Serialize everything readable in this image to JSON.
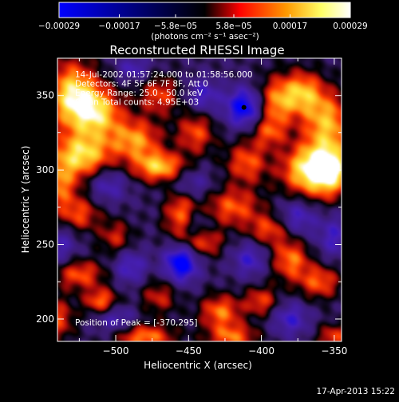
{
  "chart_data": {
    "type": "heatmap",
    "title": "Reconstructed RHESSI Image",
    "xlabel": "Heliocentric X (arcsec)",
    "ylabel": "Heliocentric Y (arcsec)",
    "xlim": [
      -540,
      -345
    ],
    "ylim": [
      185,
      375
    ],
    "xticks": [
      -500,
      -450,
      -400,
      -350
    ],
    "yticks": [
      200,
      250,
      300,
      350
    ],
    "xtick_labels": [
      "−500",
      "−450",
      "−400",
      "−350"
    ],
    "ytick_labels": [
      "200",
      "250",
      "300",
      "350"
    ],
    "grid": false,
    "colorbar": {
      "range": [
        -0.00029,
        0.00029
      ],
      "ticks": [
        -0.00029,
        -0.00017,
        -5.8e-05,
        5.8e-05,
        0.00017,
        0.00029
      ],
      "tick_labels": [
        "−0.00029",
        "−0.00017",
        "−5.8e−05",
        "5.8e−05",
        "0.00017",
        "0.00029"
      ],
      "units_label": "(photons cm⁻² s⁻¹ asec⁻²)",
      "colors": [
        "#0000ff",
        "#000000",
        "#ff0000",
        "#ff9900",
        "#ffff66",
        "#ffffff"
      ]
    },
    "annotations": [
      "14-Jul-2002 01:57:24.000 to 01:58:56.000",
      "Detectors: 4F 5F 6F 7F 8F, Att 0",
      "Energy Range: 25.0 - 50.0 keV",
      "Clean     Total counts: 4.95E+03"
    ],
    "peak_label": "Position of Peak = [-370,295]",
    "peak_position": [
      -370,
      295
    ],
    "marker_position": [
      -412,
      342
    ],
    "blobs": [
      {
        "x": -530,
        "y": 350,
        "sx": 12,
        "sy": 16,
        "v": 0.00029
      },
      {
        "x": -512,
        "y": 338,
        "sx": 12,
        "sy": 12,
        "v": 0.00025
      },
      {
        "x": -470,
        "y": 350,
        "sx": 10,
        "sy": 9,
        "v": 0.00016
      },
      {
        "x": -486,
        "y": 320,
        "sx": 12,
        "sy": 10,
        "v": 0.00022
      },
      {
        "x": -470,
        "y": 302,
        "sx": 12,
        "sy": 7,
        "v": 0.00026
      },
      {
        "x": -523,
        "y": 310,
        "sx": 14,
        "sy": 10,
        "v": 0.00027
      },
      {
        "x": -540,
        "y": 290,
        "sx": 10,
        "sy": 12,
        "v": 0.0002
      },
      {
        "x": -525,
        "y": 270,
        "sx": 10,
        "sy": 8,
        "v": 0.00016
      },
      {
        "x": -500,
        "y": 255,
        "sx": 8,
        "sy": 8,
        "v": 0.00013
      },
      {
        "x": -525,
        "y": 230,
        "sx": 12,
        "sy": 7,
        "v": 0.00018
      },
      {
        "x": -510,
        "y": 212,
        "sx": 8,
        "sy": 6,
        "v": 0.0002
      },
      {
        "x": -540,
        "y": 200,
        "sx": 8,
        "sy": 10,
        "v": 0.00016
      },
      {
        "x": -470,
        "y": 215,
        "sx": 9,
        "sy": 8,
        "v": 0.00013
      },
      {
        "x": -455,
        "y": 270,
        "sx": 8,
        "sy": 14,
        "v": 0.00021
      },
      {
        "x": -440,
        "y": 252,
        "sx": 9,
        "sy": 7,
        "v": 0.00019
      },
      {
        "x": -420,
        "y": 275,
        "sx": 14,
        "sy": 9,
        "v": 0.00018
      },
      {
        "x": -395,
        "y": 260,
        "sx": 10,
        "sy": 7,
        "v": 0.00016
      },
      {
        "x": -410,
        "y": 305,
        "sx": 10,
        "sy": 10,
        "v": 0.00018
      },
      {
        "x": -445,
        "y": 325,
        "sx": 9,
        "sy": 10,
        "v": 0.00017
      },
      {
        "x": -390,
        "y": 345,
        "sx": 9,
        "sy": 12,
        "v": 0.0002
      },
      {
        "x": -372,
        "y": 352,
        "sx": 10,
        "sy": 10,
        "v": 0.00023
      },
      {
        "x": -355,
        "y": 332,
        "sx": 12,
        "sy": 14,
        "v": 0.00024
      },
      {
        "x": -368,
        "y": 300,
        "sx": 13,
        "sy": 12,
        "v": 0.00029
      },
      {
        "x": -352,
        "y": 300,
        "sx": 10,
        "sy": 12,
        "v": 0.00027
      },
      {
        "x": -395,
        "y": 325,
        "sx": 8,
        "sy": 7,
        "v": 0.00014
      },
      {
        "x": -380,
        "y": 240,
        "sx": 9,
        "sy": 10,
        "v": 0.0002
      },
      {
        "x": -360,
        "y": 225,
        "sx": 10,
        "sy": 8,
        "v": 0.00018
      },
      {
        "x": -428,
        "y": 205,
        "sx": 10,
        "sy": 8,
        "v": 0.0002
      },
      {
        "x": -400,
        "y": 212,
        "sx": 8,
        "sy": 7,
        "v": 0.00016
      },
      {
        "x": -480,
        "y": 188,
        "sx": 14,
        "sy": 6,
        "v": 0.00021
      },
      {
        "x": -420,
        "y": 188,
        "sx": 12,
        "sy": 6,
        "v": 0.00019
      },
      {
        "x": -350,
        "y": 188,
        "sx": 8,
        "sy": 6,
        "v": 0.00016
      },
      {
        "x": -412,
        "y": 342,
        "sx": 9,
        "sy": 9,
        "v": -0.00024
      },
      {
        "x": -440,
        "y": 350,
        "sx": 8,
        "sy": 8,
        "v": -0.00014
      },
      {
        "x": -455,
        "y": 238,
        "sx": 8,
        "sy": 9,
        "v": -0.00028
      },
      {
        "x": -445,
        "y": 262,
        "sx": 8,
        "sy": 8,
        "v": -0.00013
      },
      {
        "x": -490,
        "y": 235,
        "sx": 8,
        "sy": 8,
        "v": -0.00014
      },
      {
        "x": -505,
        "y": 290,
        "sx": 9,
        "sy": 8,
        "v": -0.00012
      },
      {
        "x": -450,
        "y": 290,
        "sx": 10,
        "sy": 8,
        "v": -0.00013
      },
      {
        "x": -408,
        "y": 240,
        "sx": 8,
        "sy": 8,
        "v": -0.00014
      },
      {
        "x": -375,
        "y": 268,
        "sx": 9,
        "sy": 9,
        "v": -0.00014
      },
      {
        "x": -350,
        "y": 255,
        "sx": 8,
        "sy": 10,
        "v": -0.00013
      },
      {
        "x": -380,
        "y": 200,
        "sx": 9,
        "sy": 8,
        "v": -0.00014
      },
      {
        "x": -500,
        "y": 200,
        "sx": 9,
        "sy": 7,
        "v": -0.00012
      },
      {
        "x": -488,
        "y": 368,
        "sx": 8,
        "sy": 6,
        "v": -0.00012
      },
      {
        "x": -538,
        "y": 250,
        "sx": 8,
        "sy": 10,
        "v": -0.00011
      }
    ],
    "background_level": -5e-05
  },
  "footer": {
    "date": "17-Apr-2013 15:22"
  }
}
